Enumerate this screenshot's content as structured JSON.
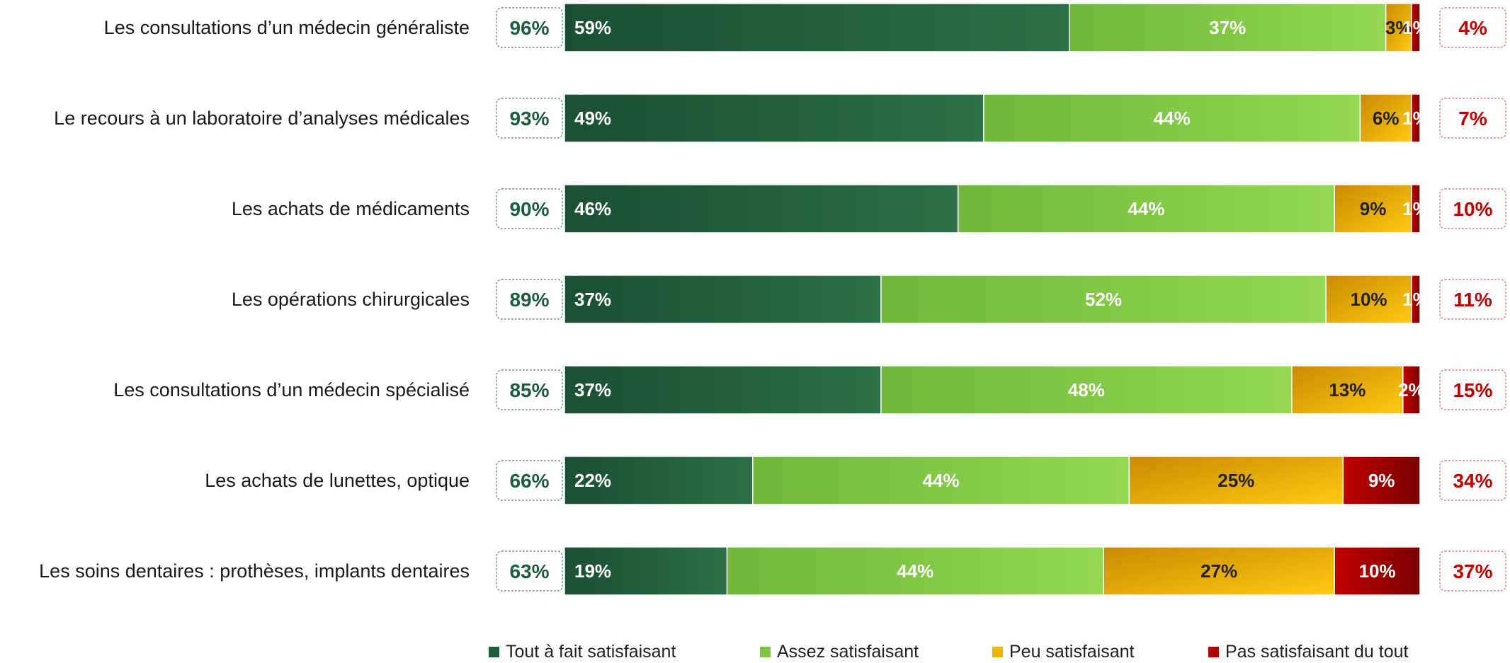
{
  "chart_data": {
    "type": "bar",
    "orientation": "horizontal",
    "stacked": true,
    "categories": [
      "Les consultations d’un médecin généraliste",
      "Le recours à un laboratoire d’analyses médicales",
      "Les achats de médicaments",
      "Les opérations chirurgicales",
      "Les consultations d’un médecin spécialisé",
      "Les achats de lunettes, optique",
      "Les soins dentaires : prothèses, implants dentaires"
    ],
    "series": [
      {
        "name": "Tout à fait satisfaisant",
        "color": "#1f5c3c",
        "values": [
          59,
          49,
          46,
          37,
          37,
          22,
          19
        ],
        "labels": [
          "59%",
          "49%",
          "46%",
          "37%",
          "37%",
          "22%",
          "19%"
        ]
      },
      {
        "name": "Assez satisfaisant",
        "color": "#7dc43f",
        "values": [
          37,
          44,
          44,
          52,
          48,
          44,
          44
        ],
        "labels": [
          "37%",
          "44%",
          "44%",
          "52%",
          "48%",
          "44%",
          "44%"
        ]
      },
      {
        "name": "Peu satisfaisant",
        "color": "#f0b400",
        "values": [
          3,
          6,
          9,
          10,
          13,
          25,
          27
        ],
        "labels": [
          "3%",
          "6%",
          "9%",
          "10%",
          "13%",
          "25%",
          "27%"
        ]
      },
      {
        "name": "Pas satisfaisant du tout",
        "color": "#b00000",
        "values": [
          1,
          1,
          1,
          1,
          2,
          9,
          10
        ],
        "labels": [
          "1%",
          "1%",
          "1%",
          "1%",
          "2%",
          "9%",
          "10%"
        ]
      }
    ],
    "satisfied_totals": [
      "96%",
      "93%",
      "90%",
      "89%",
      "85%",
      "66%",
      "63%"
    ],
    "unsatisfied_totals": [
      "4%",
      "7%",
      "10%",
      "11%",
      "15%",
      "34%",
      "37%"
    ],
    "xlim": [
      0,
      100
    ],
    "grid": false,
    "legend_position": "bottom"
  }
}
